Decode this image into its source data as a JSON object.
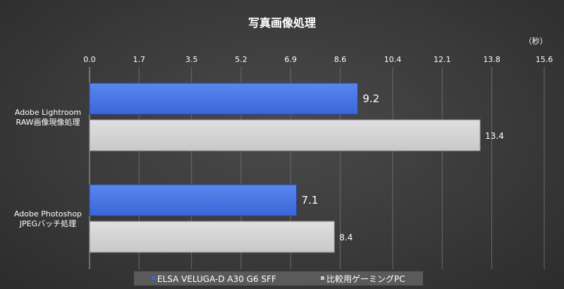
{
  "chart_data": {
    "type": "bar",
    "orientation": "horizontal",
    "title": "写真画像処理",
    "unit": "（秒）",
    "categories": [
      "Adobe Lightroom\nRAW画像現像処理",
      "Adobe Photoshop\nJPEGバッチ処理"
    ],
    "series": [
      {
        "name": "ELSA VELUGA-D A30 G6 SFF",
        "values": [
          9.2,
          7.1
        ],
        "color": "#3a67d8"
      },
      {
        "name": "比較用ゲーミングPC",
        "values": [
          13.4,
          8.4
        ],
        "color": "#c8c8c8"
      }
    ],
    "xlim": [
      0,
      15.6
    ],
    "ticks": [
      "0.0",
      "1.7",
      "3.5",
      "5.2",
      "6.9",
      "8.6",
      "10.4",
      "12.1",
      "13.8",
      "15.6"
    ],
    "legend_position": "bottom",
    "grid": true
  }
}
